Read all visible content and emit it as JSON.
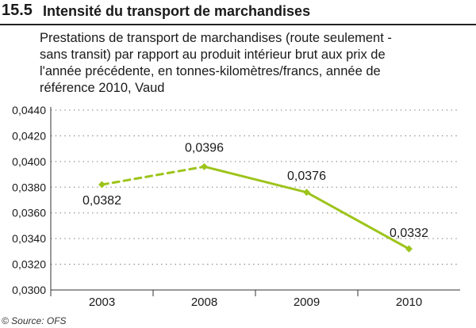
{
  "header": {
    "number": "15.5",
    "title": "Intensité du transport de marchandises"
  },
  "subtitle_lines": [
    "Prestations de transport de marchandises (route seulement -",
    "sans transit) par rapport au produit intérieur brut aux prix de",
    "l'année précédente, en tonnes-kilomètres/francs, année de",
    "référence 2010, Vaud"
  ],
  "source": "© Source: OFS",
  "chart_data": {
    "type": "line",
    "categories": [
      "2003",
      "2008",
      "2009",
      "2010"
    ],
    "series": [
      {
        "values": [
          0.0382,
          0.0396,
          0.0376,
          0.0332
        ],
        "data_labels": [
          "0,0382",
          "0,0396",
          "0,0376",
          "0,0332"
        ],
        "dashed_segments": [
          0
        ],
        "color": "#9dc41a"
      }
    ],
    "ylim": [
      0.03,
      0.044
    ],
    "yticks": [
      0.03,
      0.032,
      0.034,
      0.036,
      0.038,
      0.04,
      0.042,
      0.044
    ],
    "ytick_labels": [
      "0,0300",
      "0,0320",
      "0,0340",
      "0,0360",
      "0,0380",
      "0,0400",
      "0,0420",
      "0,0440"
    ],
    "grid": true,
    "xlabel": "",
    "ylabel": ""
  },
  "colors": {
    "series": "#9dc41a",
    "grid": "#8a8a8a",
    "axis": "#333333"
  }
}
